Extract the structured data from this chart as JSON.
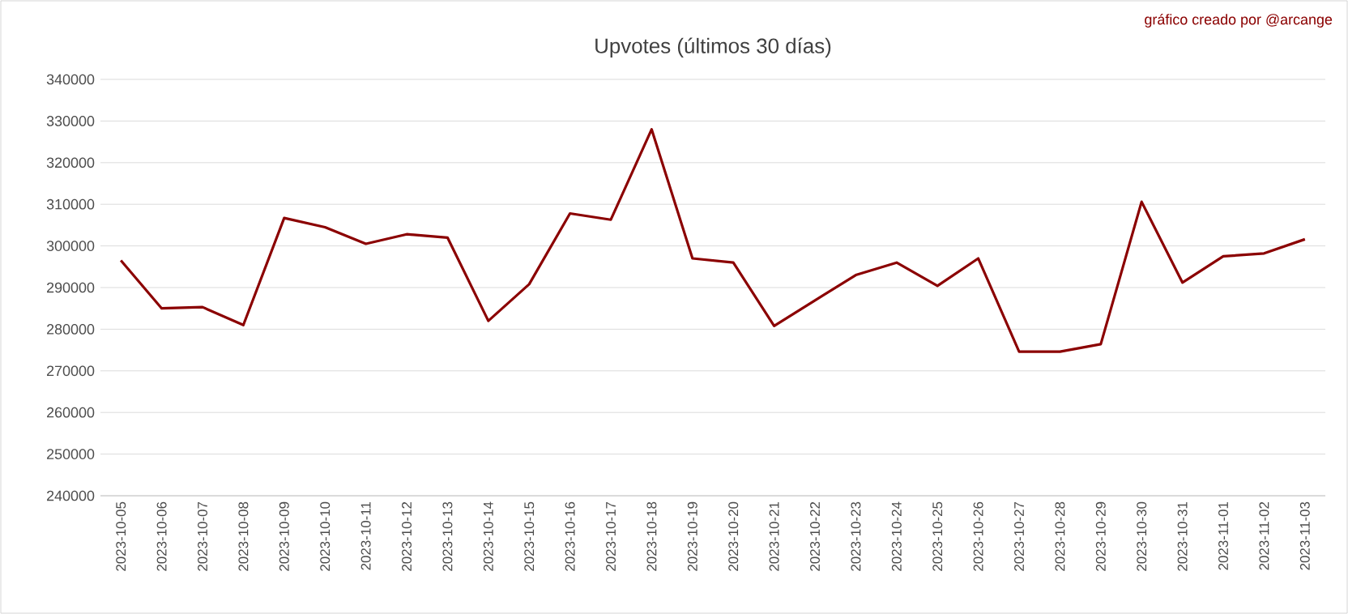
{
  "chart_data": {
    "type": "line",
    "title": "Upvotes (últimos 30 días)",
    "annotations": [
      "gráfico creado por @arcange"
    ],
    "categories": [
      "2023-10-05",
      "2023-10-06",
      "2023-10-07",
      "2023-10-08",
      "2023-10-09",
      "2023-10-10",
      "2023-10-11",
      "2023-10-12",
      "2023-10-13",
      "2023-10-14",
      "2023-10-15",
      "2023-10-16",
      "2023-10-17",
      "2023-10-18",
      "2023-10-19",
      "2023-10-20",
      "2023-10-21",
      "2023-10-22",
      "2023-10-23",
      "2023-10-24",
      "2023-10-25",
      "2023-10-26",
      "2023-10-27",
      "2023-10-28",
      "2023-10-29",
      "2023-10-30",
      "2023-10-31",
      "2023-11-01",
      "2023-11-02",
      "2023-11-03"
    ],
    "values": [
      296500,
      285000,
      285300,
      281000,
      306700,
      304500,
      300500,
      302800,
      302000,
      282000,
      290800,
      307800,
      306300,
      328000,
      297000,
      296000,
      280800,
      286900,
      293000,
      296000,
      290400,
      297000,
      274600,
      274600,
      276400,
      310600,
      291200,
      297500,
      298200,
      301600
    ],
    "color": "#8b0000",
    "ylim": [
      240000,
      340000
    ],
    "yticks": [
      240000,
      250000,
      260000,
      270000,
      280000,
      290000,
      300000,
      310000,
      320000,
      330000,
      340000
    ],
    "grid": "y",
    "marker": "none",
    "line_style": "solid"
  }
}
